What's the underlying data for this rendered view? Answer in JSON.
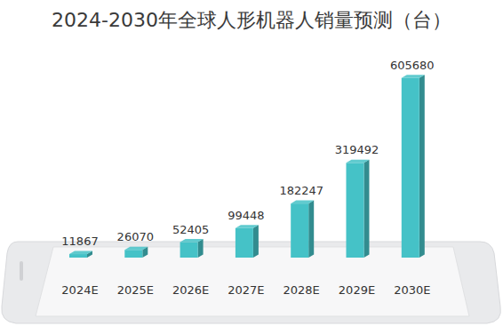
{
  "chart_data": {
    "type": "bar",
    "title": "2024-2030年全球人形机器人销量预测（台）",
    "categories": [
      "2024E",
      "2025E",
      "2026E",
      "2027E",
      "2028E",
      "2029E",
      "2030E"
    ],
    "values": [
      11867,
      26070,
      52405,
      99448,
      182247,
      319492,
      605680
    ],
    "color": "#45c2c7",
    "ylim": [
      0,
      650000
    ],
    "grid": false,
    "data_labels": true,
    "tick_labels": "x"
  }
}
